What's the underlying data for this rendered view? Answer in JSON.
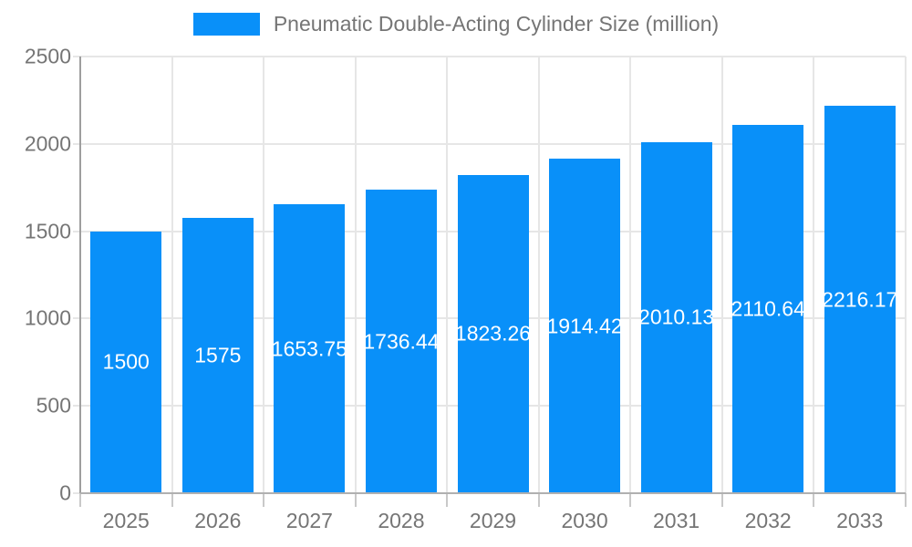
{
  "legend": {
    "label": "Pneumatic Double-Acting Cylinder Size (million)"
  },
  "chart_data": {
    "type": "bar",
    "title": "Pneumatic Double-Acting Cylinder Size (million)",
    "categories": [
      "2025",
      "2026",
      "2027",
      "2028",
      "2029",
      "2030",
      "2031",
      "2032",
      "2033"
    ],
    "values": [
      1500,
      1575,
      1653.75,
      1736.44,
      1823.26,
      1914.42,
      2010.13,
      2110.64,
      2216.17
    ],
    "value_labels": [
      "1500",
      "1575",
      "1653.75",
      "1736.44",
      "1823.26",
      "1914.42",
      "2010.13",
      "2110.64",
      "2216.17"
    ],
    "xlabel": "",
    "ylabel": "",
    "ylim": [
      0,
      2500
    ],
    "yticks": [
      0,
      500,
      1000,
      1500,
      2000,
      2500
    ],
    "grid": true,
    "legend_position": "top",
    "colors": {
      "bar": "#0990f9",
      "grid": "#e6e6e6",
      "axis_y": "#9e9e9e",
      "axis_x": "#b0b0b0",
      "tick": "#c9c9c9",
      "text": "#757575",
      "bar_label": "#ffffff",
      "background": "#ffffff"
    }
  }
}
